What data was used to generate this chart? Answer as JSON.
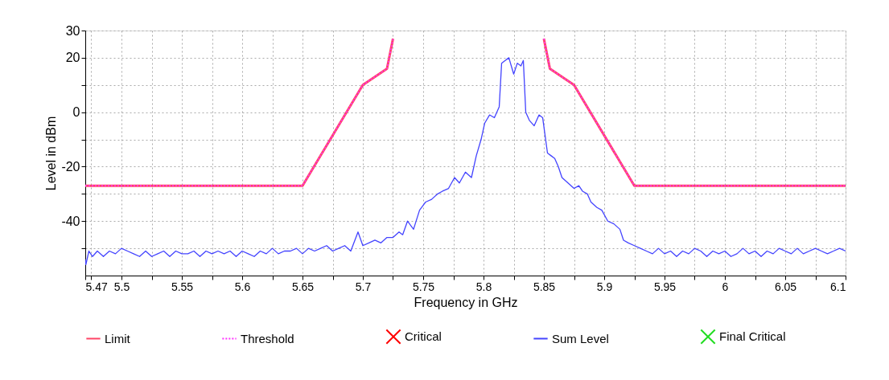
{
  "chart_data": {
    "type": "line",
    "xlabel": "Frequency in GHz",
    "ylabel": "Level in dBm",
    "xlim": [
      5.47,
      6.1
    ],
    "ylim": [
      -60,
      30
    ],
    "xticks": [
      5.47,
      {
        "value": 5.475,
        "label": null
      },
      5.5,
      {
        "value": 5.525,
        "label": null
      },
      5.55,
      {
        "value": 5.575,
        "label": null
      },
      5.6,
      {
        "value": 5.625,
        "label": null
      },
      5.65,
      {
        "value": 5.675,
        "label": null
      },
      5.7,
      {
        "value": 5.725,
        "label": null
      },
      5.75,
      {
        "value": 5.775,
        "label": null
      },
      5.8,
      {
        "value": 5.825,
        "label": null
      },
      5.85,
      {
        "value": 5.875,
        "label": null
      },
      5.9,
      {
        "value": 5.925,
        "label": null
      },
      5.95,
      {
        "value": 5.975,
        "label": null
      },
      6,
      {
        "value": 6.025,
        "label": null
      },
      6.05,
      {
        "value": 6.075,
        "label": null
      },
      6.1
    ],
    "yticks": [
      30,
      20,
      {
        "value": 10,
        "label": null
      },
      0,
      {
        "value": -10,
        "label": null
      },
      -20,
      {
        "value": -30,
        "label": null
      },
      -40,
      {
        "value": -50,
        "label": null
      }
    ],
    "grid": true,
    "legend": "bottom",
    "series": [
      {
        "name": "Limit",
        "color": "#ff4466",
        "line_style": "solid",
        "x": [
          5.47,
          5.65,
          5.7,
          5.72,
          5.725,
          5.79,
          5.85,
          5.855,
          5.875,
          5.925,
          6.1
        ],
        "values": [
          -27,
          -27,
          10,
          16,
          27,
          null,
          27,
          16,
          10,
          -27,
          -27
        ]
      },
      {
        "name": "Threshold",
        "color": "#ff33ff",
        "line_style": "dotted",
        "x": [
          5.47,
          5.65,
          5.7,
          5.72,
          5.725,
          5.79,
          5.85,
          5.855,
          5.875,
          5.925,
          6.1
        ],
        "values": [
          -27,
          -27,
          10,
          16,
          27,
          null,
          27,
          16,
          10,
          -27,
          -27
        ]
      },
      {
        "name": "Critical",
        "type": "scatter",
        "color": "#ff0000",
        "marker": "cross"
      },
      {
        "name": "Sum Level",
        "color": "#4444ff",
        "line_style": "solid",
        "x": [
          5.47,
          5.4705,
          5.473,
          5.476,
          5.48,
          5.485,
          5.49,
          5.495,
          5.5,
          5.505,
          5.51,
          5.515,
          5.52,
          5.525,
          5.53,
          5.535,
          5.54,
          5.545,
          5.55,
          5.555,
          5.56,
          5.565,
          5.57,
          5.575,
          5.58,
          5.585,
          5.59,
          5.595,
          5.6,
          5.605,
          5.61,
          5.615,
          5.62,
          5.625,
          5.63,
          5.635,
          5.64,
          5.645,
          5.65,
          5.655,
          5.66,
          5.665,
          5.67,
          5.675,
          5.68,
          5.685,
          5.69,
          5.696,
          5.7,
          5.705,
          5.71,
          5.715,
          5.72,
          5.725,
          5.73,
          5.733,
          5.737,
          5.742,
          5.747,
          5.752,
          5.757,
          5.762,
          5.766,
          5.771,
          5.776,
          5.78,
          5.785,
          5.79,
          5.794,
          5.798,
          5.801,
          5.805,
          5.809,
          5.813,
          5.815,
          5.818,
          5.821,
          5.825,
          5.828,
          5.831,
          5.833,
          5.835,
          5.838,
          5.842,
          5.846,
          5.849,
          5.853,
          5.856,
          5.859,
          5.862,
          5.865,
          5.87,
          5.875,
          5.879,
          5.882,
          5.886,
          5.889,
          5.894,
          5.898,
          5.903,
          5.908,
          5.913,
          5.916,
          5.92,
          5.925,
          5.93,
          5.935,
          5.94,
          5.945,
          5.95,
          5.955,
          5.96,
          5.965,
          5.97,
          5.975,
          5.98,
          5.985,
          5.99,
          5.995,
          6,
          6.005,
          6.01,
          6.015,
          6.02,
          6.025,
          6.03,
          6.035,
          6.04,
          6.045,
          6.05,
          6.055,
          6.06,
          6.065,
          6.07,
          6.075,
          6.08,
          6.085,
          6.09,
          6.095,
          6.1
        ],
        "values": [
          -54,
          -56,
          -51,
          -53,
          -51,
          -53,
          -51,
          -52,
          -50,
          -51,
          -52,
          -53,
          -51,
          -53,
          -52,
          -51,
          -53,
          -51,
          -52,
          -52,
          -51,
          -53,
          -51,
          -52,
          -51,
          -52,
          -51,
          -53,
          -51,
          -52,
          -53,
          -51,
          -52,
          -50,
          -52,
          -51,
          -51,
          -50,
          -52,
          -50,
          -51,
          -50,
          -49,
          -51,
          -50,
          -49,
          -51,
          -44,
          -49,
          -48,
          -47,
          -48,
          -46,
          -46,
          -44,
          -45,
          -40,
          -43,
          -36,
          -33,
          -32,
          -30,
          -29,
          -28,
          -24,
          -26,
          -22,
          -24,
          -16,
          -10,
          -4,
          -1,
          -2,
          2,
          18,
          19,
          20,
          14,
          18,
          17,
          19,
          0,
          -3,
          -5,
          -1,
          -2,
          -15,
          -16,
          -17,
          -20,
          -24,
          -26,
          -28,
          -27,
          -29,
          -30,
          -33,
          -35,
          -36,
          -40,
          -41,
          -43,
          -47,
          -48,
          -49,
          -50,
          -51,
          -52,
          -50,
          -52,
          -51,
          -53,
          -51,
          -52,
          -50,
          -51,
          -53,
          -51,
          -52,
          -51,
          -53,
          -52,
          -50,
          -52,
          -51,
          -53,
          -51,
          -52,
          -50,
          -51,
          -52,
          -50,
          -52,
          -51,
          -50,
          -51,
          -52,
          -51,
          -50,
          -51
        ]
      },
      {
        "name": "Final Critical",
        "type": "scatter",
        "color": "#22dd22",
        "marker": "cross"
      }
    ]
  }
}
